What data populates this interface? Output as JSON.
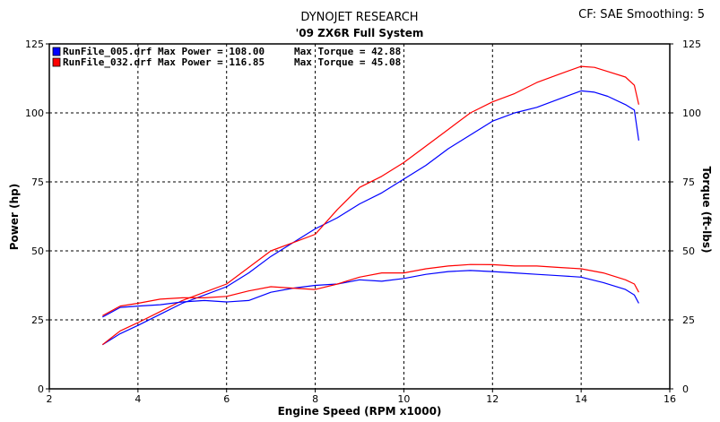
{
  "header": {
    "title": "DYNOJET RESEARCH",
    "subtitle": "'09 ZX6R Full System",
    "correction": "CF: SAE  Smoothing: 5"
  },
  "chart_data": {
    "type": "line",
    "xlabel": "Engine Speed (RPM x1000)",
    "ylabel_left": "Power (hp)",
    "ylabel_right": "Torque (ft-lbs)",
    "xlim": [
      2,
      16
    ],
    "ylim_left": [
      0,
      125
    ],
    "ylim_right": [
      0,
      125
    ],
    "x_ticks": [
      2,
      4,
      6,
      8,
      10,
      12,
      14,
      16
    ],
    "y_ticks": [
      0,
      25,
      50,
      75,
      100,
      125
    ],
    "grid": true,
    "legend_position": "top-left",
    "legend": [
      {
        "file": "RunFile_005.drf",
        "max_power_label": "Max Power = 108.00",
        "max_torque_label": "Max Torque = 42.88",
        "color": "#0000ff"
      },
      {
        "file": "RunFile_032.drf",
        "max_power_label": "Max Power = 116.85",
        "max_torque_label": "Max Torque = 45.08",
        "color": "#ff0000"
      }
    ],
    "series": [
      {
        "name": "RunFile_005.drf Power",
        "color": "#0000ff",
        "x": [
          3.2,
          3.6,
          4.0,
          4.5,
          5.0,
          5.5,
          6.0,
          6.5,
          7.0,
          7.5,
          8.0,
          8.5,
          9.0,
          9.5,
          10.0,
          10.5,
          11.0,
          11.5,
          12.0,
          12.5,
          13.0,
          13.5,
          14.0,
          14.3,
          14.6,
          15.0,
          15.2,
          15.3
        ],
        "y": [
          16,
          20,
          23,
          27,
          31,
          34,
          37,
          42,
          48,
          53,
          58,
          62,
          67,
          71,
          76,
          81,
          87,
          92,
          97,
          100,
          102,
          105,
          108,
          107.5,
          106,
          103,
          101,
          90
        ]
      },
      {
        "name": "RunFile_032.drf Power",
        "color": "#ff0000",
        "x": [
          3.2,
          3.6,
          4.0,
          4.5,
          5.0,
          5.5,
          6.0,
          6.5,
          7.0,
          7.5,
          8.0,
          8.5,
          9.0,
          9.5,
          10.0,
          10.5,
          11.0,
          11.5,
          12.0,
          12.5,
          13.0,
          13.5,
          14.0,
          14.3,
          14.6,
          15.0,
          15.2,
          15.3
        ],
        "y": [
          16,
          21,
          24,
          28,
          32,
          35,
          38,
          44,
          50,
          53,
          56,
          65,
          73,
          77,
          82,
          88,
          94,
          100,
          104,
          107,
          111,
          114,
          116.85,
          116.5,
          115,
          113,
          110,
          103
        ]
      },
      {
        "name": "RunFile_005.drf Torque",
        "color": "#0000ff",
        "x": [
          3.2,
          3.6,
          4.0,
          4.5,
          5.0,
          5.5,
          6.0,
          6.5,
          7.0,
          7.5,
          8.0,
          8.5,
          9.0,
          9.5,
          10.0,
          10.5,
          11.0,
          11.5,
          12.0,
          12.5,
          13.0,
          13.5,
          14.0,
          14.5,
          15.0,
          15.2,
          15.3
        ],
        "y": [
          26,
          29.5,
          30,
          30.5,
          31.5,
          32,
          31.5,
          32,
          35,
          36.5,
          37.5,
          38,
          39.5,
          39,
          40,
          41.5,
          42.5,
          42.88,
          42.5,
          42,
          41.5,
          41,
          40.5,
          38.5,
          36,
          34,
          31
        ]
      },
      {
        "name": "RunFile_032.drf Torque",
        "color": "#ff0000",
        "x": [
          3.2,
          3.6,
          4.0,
          4.5,
          5.0,
          5.5,
          6.0,
          6.5,
          7.0,
          7.5,
          8.0,
          8.5,
          9.0,
          9.5,
          10.0,
          10.5,
          11.0,
          11.5,
          12.0,
          12.5,
          13.0,
          13.5,
          14.0,
          14.5,
          15.0,
          15.2,
          15.3
        ],
        "y": [
          26.5,
          30,
          31,
          32.5,
          33,
          33,
          33.5,
          35.5,
          37,
          36.5,
          36,
          38,
          40.5,
          42,
          42,
          43.5,
          44.5,
          45.08,
          45,
          44.5,
          44.5,
          44,
          43.5,
          42,
          39.5,
          38,
          35
        ]
      }
    ]
  }
}
